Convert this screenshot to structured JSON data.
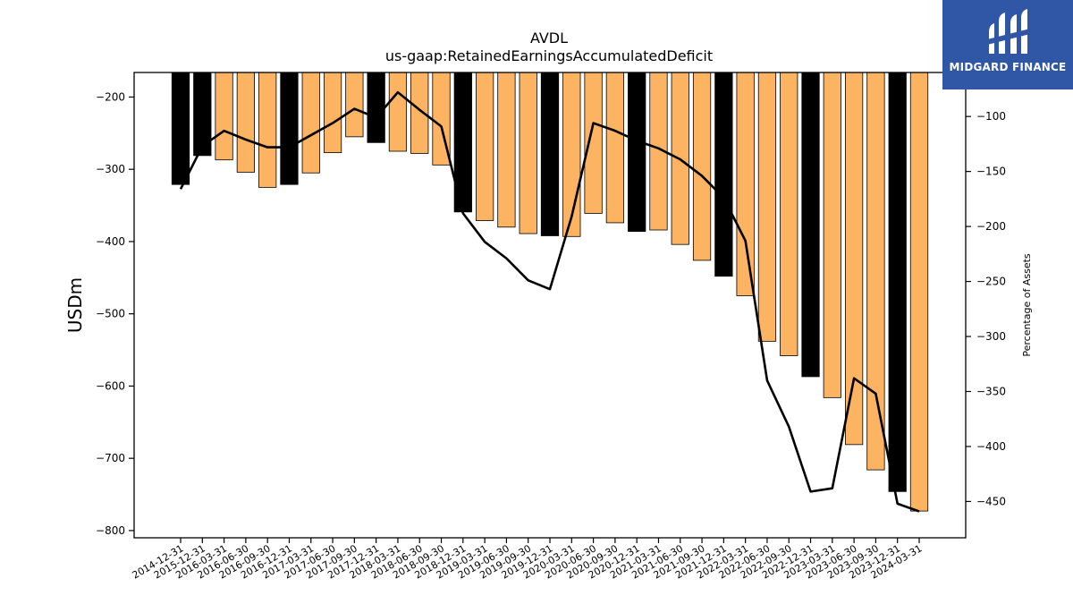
{
  "chart_data": {
    "type": "bar",
    "title": "AVDL",
    "subtitle": "us-gaap:RetainedEarningsAccumulatedDeficit",
    "ylabel": "USDm",
    "y2label": "Percentage of Assets",
    "ylim": [
      -810,
      -166
    ],
    "y2lim": [
      -483,
      -60
    ],
    "yticks": [
      -200,
      -300,
      -400,
      -500,
      -600,
      -700,
      -800
    ],
    "y2ticks": [
      -100,
      -150,
      -200,
      -250,
      -300,
      -350,
      -400,
      -450
    ],
    "categories": [
      "2014-12-31",
      "2015-12-31",
      "2016-03-31",
      "2016-06-30",
      "2016-09-30",
      "2016-12-31",
      "2017-03-31",
      "2017-06-30",
      "2017-09-30",
      "2017-12-31",
      "2018-03-31",
      "2018-06-30",
      "2018-09-30",
      "2018-12-31",
      "2019-03-31",
      "2019-06-30",
      "2019-09-30",
      "2019-12-31",
      "2020-03-31",
      "2020-06-30",
      "2020-09-30",
      "2020-12-31",
      "2021-03-31",
      "2021-06-30",
      "2021-09-30",
      "2021-12-31",
      "2022-03-31",
      "2022-06-30",
      "2022-09-30",
      "2022-12-31",
      "2023-03-31",
      "2023-06-30",
      "2023-09-30",
      "2023-12-31",
      "2024-03-31"
    ],
    "bar_values": [
      -321,
      -281,
      -287,
      -304,
      -325,
      -321,
      -305,
      -277,
      -255,
      -263,
      -275,
      -278,
      -294,
      -359,
      -371,
      -380,
      -389,
      -392,
      -393,
      -361,
      -374,
      -386,
      -384,
      -404,
      -426,
      -448,
      -475,
      -538,
      -558,
      -587,
      -616,
      -681,
      -716,
      -746,
      -773
    ],
    "bar_colors": [
      "#000000",
      "#000000",
      "#fdb462",
      "#fdb462",
      "#fdb462",
      "#000000",
      "#fdb462",
      "#fdb462",
      "#fdb462",
      "#000000",
      "#fdb462",
      "#fdb462",
      "#fdb462",
      "#000000",
      "#fdb462",
      "#fdb462",
      "#fdb462",
      "#000000",
      "#fdb462",
      "#fdb462",
      "#fdb462",
      "#000000",
      "#fdb462",
      "#fdb462",
      "#fdb462",
      "#000000",
      "#fdb462",
      "#fdb462",
      "#fdb462",
      "#000000",
      "#fdb462",
      "#fdb462",
      "#fdb462",
      "#000000",
      "#fdb462"
    ],
    "line_values": [
      -166,
      -127,
      -113,
      -121,
      -128,
      -128,
      -117,
      -106,
      -93,
      -101,
      -78,
      -94,
      -109,
      -188,
      -214,
      -229,
      -249,
      -257,
      -191,
      -106,
      -113,
      -122,
      -129,
      -139,
      -154,
      -174,
      -213,
      -340,
      -382,
      -441,
      -438,
      -338,
      -352,
      -452,
      -459
    ],
    "line_color": "#000000",
    "orange_color": "#fdb462",
    "black_color": "#000000"
  },
  "logo": {
    "text": "MIDGARD FINANCE",
    "background": "#2f57a6"
  }
}
